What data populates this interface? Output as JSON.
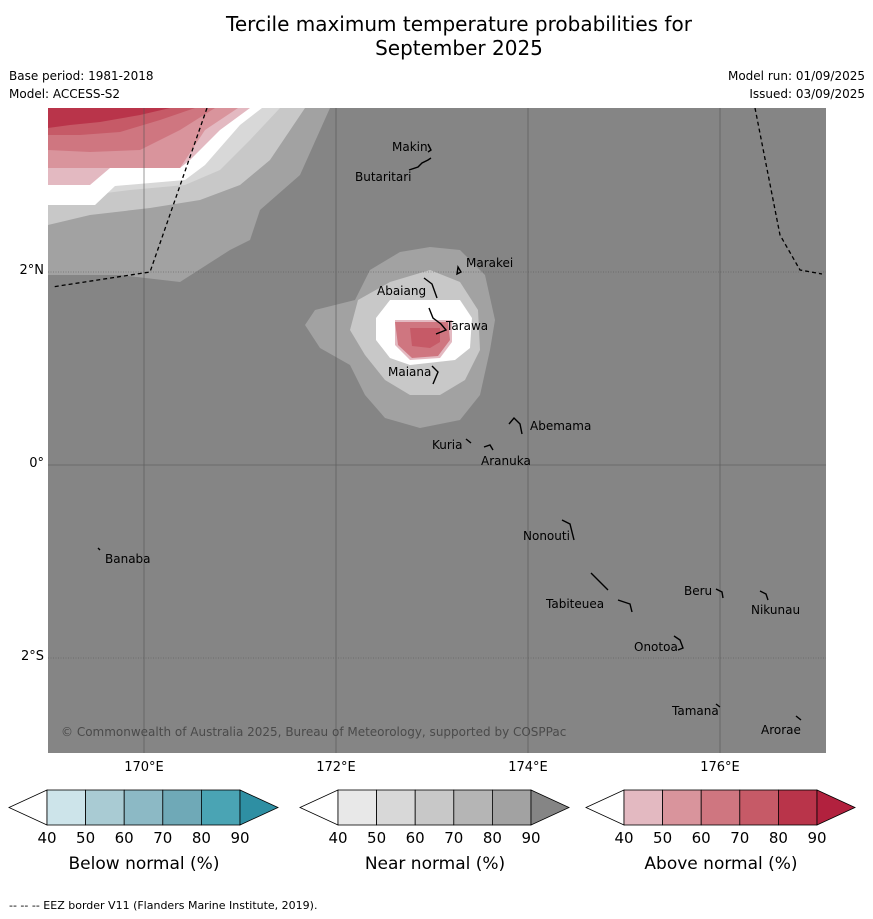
{
  "title_line1": "Tercile maximum temperature probabilities for",
  "title_line2": "September 2025",
  "meta": {
    "base_period": "Base period: 1981-2018",
    "model": "Model: ACCESS-S2",
    "model_run": "Model run: 01/09/2025",
    "issued": "Issued: 03/09/2025"
  },
  "axes": {
    "lon_labels": [
      "170°E",
      "172°E",
      "174°E",
      "176°E"
    ],
    "lat_labels": [
      "2°N",
      "0°",
      "2°S"
    ]
  },
  "places": [
    "Makin",
    "Butaritari",
    "Marakei",
    "Abaiang",
    "Tarawa",
    "Maiana",
    "Abemama",
    "Kuria",
    "Aranuka",
    "Nonouti",
    "Banaba",
    "Beru",
    "Tabiteuea",
    "Nikunau",
    "Onotoa",
    "Tamana",
    "Arorae"
  ],
  "copyright": "© Commonwealth of Australia 2025, Bureau of Meteorology, supported by COSPPac",
  "colorbars": [
    {
      "label": "Below normal (%)",
      "ticks": [
        "40",
        "50",
        "60",
        "70",
        "80",
        "90"
      ],
      "colors": [
        "#ffffff",
        "#cde4ea",
        "#a9cbd3",
        "#8cb9c5",
        "#6fa9b7",
        "#4aa4b4",
        "#2e8fa3"
      ]
    },
    {
      "label": "Near normal (%)",
      "ticks": [
        "40",
        "50",
        "60",
        "70",
        "80",
        "90"
      ],
      "colors": [
        "#ffffff",
        "#e8e8e8",
        "#d8d8d8",
        "#c8c8c8",
        "#b5b5b5",
        "#a2a2a2",
        "#858585"
      ]
    },
    {
      "label": "Above normal (%)",
      "ticks": [
        "40",
        "50",
        "60",
        "70",
        "80",
        "90"
      ],
      "colors": [
        "#ffffff",
        "#e3b9c1",
        "#d9949c",
        "#cf7680",
        "#c65a67",
        "#b9344a",
        "#b2213e"
      ]
    }
  ],
  "footer": "-- -- -- EEZ border V11 (Flanders Marine Institute, 2019)."
}
